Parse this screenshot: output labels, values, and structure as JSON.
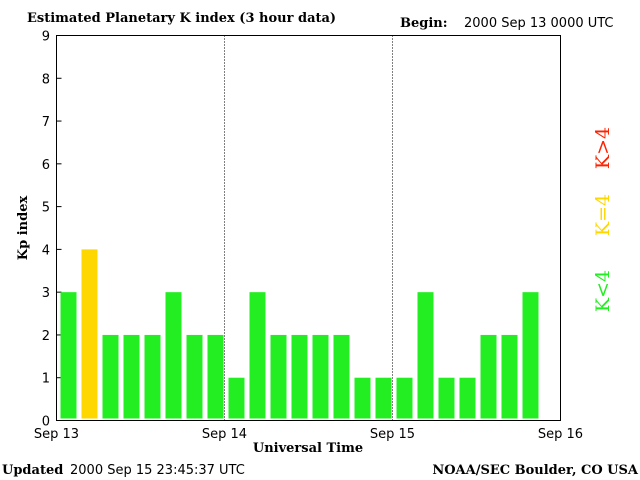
{
  "header": {
    "title": "Estimated Planetary K index (3 hour data)",
    "begin_label": "Begin:",
    "begin_value": "2000 Sep 13 0000 UTC"
  },
  "footer": {
    "updated_label": "Updated",
    "updated_value": "2000 Sep 15 23:45:37 UTC",
    "source": "NOAA/SEC Boulder, CO USA"
  },
  "legend": {
    "high": "K>4",
    "mid": "K=4",
    "low": "K<4",
    "colors": {
      "high": "#ff2200",
      "mid": "#ffd700",
      "low": "#22ee22"
    }
  },
  "chart_data": {
    "type": "bar",
    "title": "Estimated Planetary K index (3 hour data)",
    "xlabel": "Universal Time",
    "ylabel": "Kp index",
    "ylim": [
      0,
      9
    ],
    "yticks": [
      "0",
      "1",
      "2",
      "3",
      "4",
      "5",
      "6",
      "7",
      "8",
      "9"
    ],
    "xticks": [
      "Sep 13",
      "Sep 14",
      "Sep 15",
      "Sep 16"
    ],
    "day_dividers": [
      "Sep 14",
      "Sep 15"
    ],
    "bars_per_day": 8,
    "values": [
      3,
      4,
      2,
      2,
      2,
      3,
      2,
      2,
      1,
      3,
      2,
      2,
      2,
      2,
      1,
      1,
      1,
      3,
      1,
      1,
      2,
      2,
      3
    ],
    "color_rule": {
      "below_4": "#22ee22",
      "equal_4": "#ffd700",
      "above_4": "#ff2200"
    }
  }
}
